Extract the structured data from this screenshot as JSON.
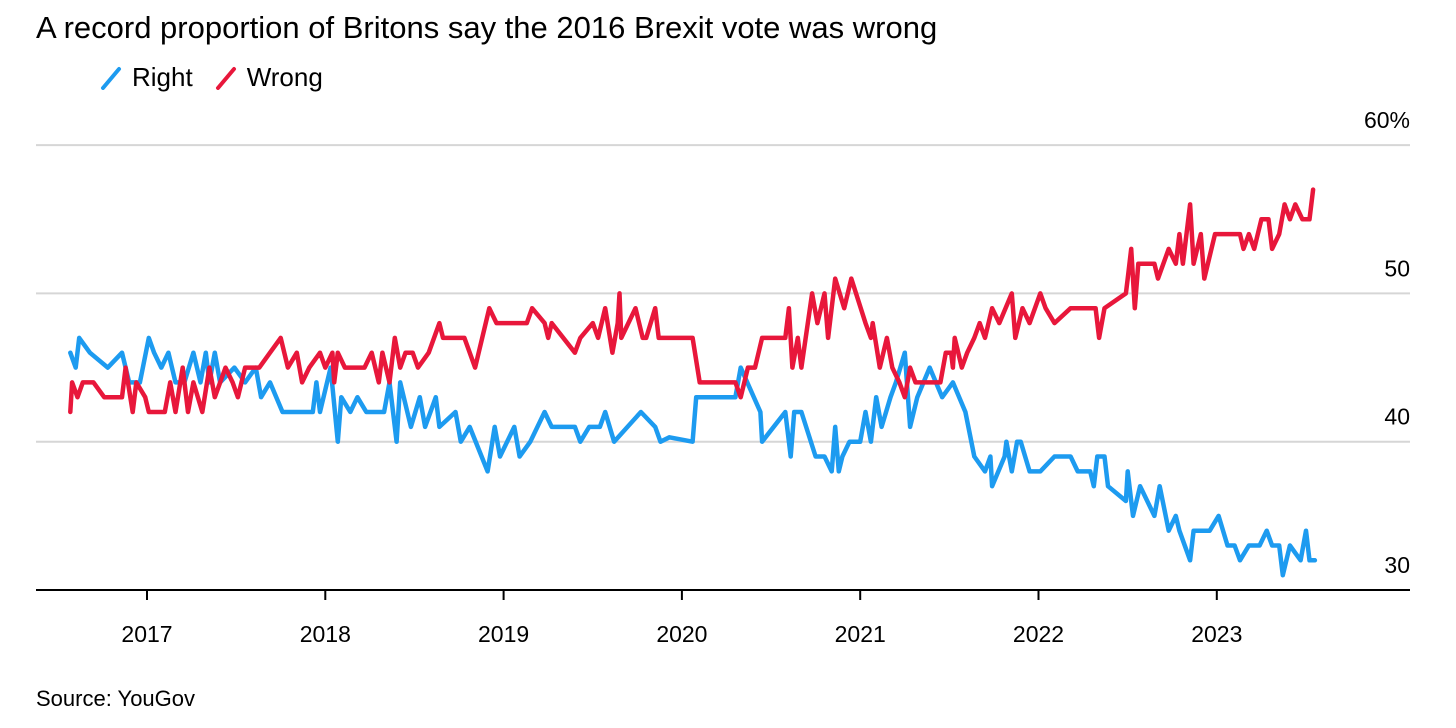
{
  "chart_data": {
    "type": "line",
    "title": "A record proportion of Britons say the 2016 Brexit vote was wrong",
    "source": "Source: YouGov",
    "xlabel": "",
    "ylabel": "",
    "xlim": [
      2016.45,
      2024.1
    ],
    "ylim": [
      30,
      60
    ],
    "y_ticks": [
      {
        "v": 60,
        "label": "60%"
      },
      {
        "v": 50,
        "label": "50"
      },
      {
        "v": 40,
        "label": "40"
      },
      {
        "v": 30,
        "label": "30"
      }
    ],
    "x_ticks": [
      {
        "v": 2017,
        "label": "2017"
      },
      {
        "v": 2018,
        "label": "2018"
      },
      {
        "v": 2019,
        "label": "2019"
      },
      {
        "v": 2020,
        "label": "2020"
      },
      {
        "v": 2021,
        "label": "2021"
      },
      {
        "v": 2022,
        "label": "2022"
      },
      {
        "v": 2023,
        "label": "2023"
      }
    ],
    "grid": true,
    "legend_position": "top-left",
    "series": [
      {
        "name": "Right",
        "color": "#1d9bf0",
        "points": [
          [
            2016.57,
            46
          ],
          [
            2016.6,
            45
          ],
          [
            2016.62,
            47
          ],
          [
            2016.68,
            46
          ],
          [
            2016.78,
            45
          ],
          [
            2016.86,
            46
          ],
          [
            2016.9,
            44
          ],
          [
            2016.96,
            44
          ],
          [
            2017.01,
            47
          ],
          [
            2017.04,
            46
          ],
          [
            2017.08,
            45
          ],
          [
            2017.12,
            46
          ],
          [
            2017.16,
            44
          ],
          [
            2017.21,
            44
          ],
          [
            2017.26,
            46
          ],
          [
            2017.3,
            44
          ],
          [
            2017.33,
            46
          ],
          [
            2017.35,
            44
          ],
          [
            2017.38,
            46
          ],
          [
            2017.41,
            44
          ],
          [
            2017.49,
            45
          ],
          [
            2017.55,
            44
          ],
          [
            2017.61,
            45
          ],
          [
            2017.64,
            43
          ],
          [
            2017.69,
            44
          ],
          [
            2017.76,
            42
          ],
          [
            2017.93,
            42
          ],
          [
            2017.95,
            44
          ],
          [
            2017.97,
            42
          ],
          [
            2018.03,
            45
          ],
          [
            2018.07,
            40
          ],
          [
            2018.09,
            43
          ],
          [
            2018.14,
            42
          ],
          [
            2018.18,
            43
          ],
          [
            2018.23,
            42
          ],
          [
            2018.33,
            42
          ],
          [
            2018.36,
            44
          ],
          [
            2018.4,
            40
          ],
          [
            2018.42,
            44
          ],
          [
            2018.48,
            41
          ],
          [
            2018.53,
            43
          ],
          [
            2018.56,
            41
          ],
          [
            2018.62,
            43
          ],
          [
            2018.64,
            41
          ],
          [
            2018.73,
            42
          ],
          [
            2018.76,
            40
          ],
          [
            2018.81,
            41
          ],
          [
            2018.91,
            38
          ],
          [
            2018.95,
            41
          ],
          [
            2018.98,
            39
          ],
          [
            2019.06,
            41
          ],
          [
            2019.09,
            39
          ],
          [
            2019.15,
            40
          ],
          [
            2019.23,
            42
          ],
          [
            2019.27,
            41
          ],
          [
            2019.4,
            41
          ],
          [
            2019.43,
            40
          ],
          [
            2019.48,
            41
          ],
          [
            2019.54,
            41
          ],
          [
            2019.57,
            42
          ],
          [
            2019.62,
            40
          ],
          [
            2019.77,
            42
          ],
          [
            2019.85,
            41
          ],
          [
            2019.88,
            40
          ],
          [
            2019.93,
            40.3
          ],
          [
            2020.06,
            40
          ],
          [
            2020.08,
            43
          ],
          [
            2020.3,
            43
          ],
          [
            2020.33,
            45
          ],
          [
            2020.44,
            42
          ],
          [
            2020.45,
            40
          ],
          [
            2020.58,
            42
          ],
          [
            2020.61,
            39
          ],
          [
            2020.63,
            42
          ],
          [
            2020.67,
            42
          ],
          [
            2020.75,
            39
          ],
          [
            2020.8,
            39
          ],
          [
            2020.84,
            38
          ],
          [
            2020.86,
            41
          ],
          [
            2020.88,
            38
          ],
          [
            2020.9,
            39
          ],
          [
            2020.94,
            40
          ],
          [
            2021.0,
            40
          ],
          [
            2021.03,
            42
          ],
          [
            2021.06,
            40
          ],
          [
            2021.09,
            43
          ],
          [
            2021.12,
            41
          ],
          [
            2021.17,
            43
          ],
          [
            2021.2,
            44
          ],
          [
            2021.25,
            46
          ],
          [
            2021.28,
            41
          ],
          [
            2021.32,
            43
          ],
          [
            2021.39,
            45
          ],
          [
            2021.46,
            43
          ],
          [
            2021.52,
            44
          ],
          [
            2021.59,
            42
          ],
          [
            2021.64,
            39
          ],
          [
            2021.7,
            38
          ],
          [
            2021.73,
            39
          ],
          [
            2021.74,
            37
          ],
          [
            2021.81,
            39
          ],
          [
            2021.82,
            40
          ],
          [
            2021.85,
            38
          ],
          [
            2021.88,
            40
          ],
          [
            2021.9,
            40
          ],
          [
            2021.95,
            38
          ],
          [
            2022.01,
            38
          ],
          [
            2022.09,
            39
          ],
          [
            2022.18,
            39
          ],
          [
            2022.22,
            38
          ],
          [
            2022.29,
            38
          ],
          [
            2022.31,
            37
          ],
          [
            2022.33,
            39
          ],
          [
            2022.37,
            39
          ],
          [
            2022.39,
            37
          ],
          [
            2022.49,
            36
          ],
          [
            2022.5,
            38
          ],
          [
            2022.53,
            35
          ],
          [
            2022.57,
            37
          ],
          [
            2022.65,
            35
          ],
          [
            2022.68,
            37
          ],
          [
            2022.73,
            34
          ],
          [
            2022.77,
            35
          ],
          [
            2022.79,
            34
          ],
          [
            2022.85,
            32
          ],
          [
            2022.87,
            34
          ],
          [
            2022.96,
            34
          ],
          [
            2023.01,
            35
          ],
          [
            2023.06,
            33
          ],
          [
            2023.1,
            33
          ],
          [
            2023.13,
            32
          ],
          [
            2023.18,
            33
          ],
          [
            2023.24,
            33
          ],
          [
            2023.28,
            34
          ],
          [
            2023.31,
            33
          ],
          [
            2023.35,
            33
          ],
          [
            2023.37,
            31
          ],
          [
            2023.41,
            33
          ],
          [
            2023.47,
            32
          ],
          [
            2023.5,
            34
          ],
          [
            2023.52,
            32
          ],
          [
            2023.55,
            32
          ]
        ]
      },
      {
        "name": "Wrong",
        "color": "#e8173b",
        "points": [
          [
            2016.57,
            42
          ],
          [
            2016.58,
            44
          ],
          [
            2016.61,
            43
          ],
          [
            2016.64,
            44
          ],
          [
            2016.7,
            44
          ],
          [
            2016.76,
            43
          ],
          [
            2016.86,
            43
          ],
          [
            2016.88,
            45
          ],
          [
            2016.92,
            42
          ],
          [
            2016.94,
            44
          ],
          [
            2016.99,
            43
          ],
          [
            2017.01,
            42
          ],
          [
            2017.1,
            42
          ],
          [
            2017.13,
            44
          ],
          [
            2017.16,
            42
          ],
          [
            2017.2,
            45
          ],
          [
            2017.23,
            42
          ],
          [
            2017.26,
            44
          ],
          [
            2017.31,
            42
          ],
          [
            2017.35,
            45
          ],
          [
            2017.38,
            43
          ],
          [
            2017.44,
            45
          ],
          [
            2017.48,
            44
          ],
          [
            2017.51,
            43
          ],
          [
            2017.55,
            45
          ],
          [
            2017.63,
            45
          ],
          [
            2017.69,
            46
          ],
          [
            2017.75,
            47
          ],
          [
            2017.79,
            45
          ],
          [
            2017.84,
            46
          ],
          [
            2017.87,
            44
          ],
          [
            2017.91,
            45
          ],
          [
            2017.97,
            46
          ],
          [
            2018.0,
            45
          ],
          [
            2018.04,
            46
          ],
          [
            2018.05,
            44
          ],
          [
            2018.07,
            46
          ],
          [
            2018.11,
            45
          ],
          [
            2018.22,
            45
          ],
          [
            2018.26,
            46
          ],
          [
            2018.3,
            44
          ],
          [
            2018.32,
            46
          ],
          [
            2018.36,
            44
          ],
          [
            2018.39,
            47
          ],
          [
            2018.42,
            45
          ],
          [
            2018.45,
            46
          ],
          [
            2018.49,
            46
          ],
          [
            2018.52,
            45
          ],
          [
            2018.58,
            46
          ],
          [
            2018.64,
            48
          ],
          [
            2018.66,
            47
          ],
          [
            2018.78,
            47
          ],
          [
            2018.84,
            45
          ],
          [
            2018.92,
            49
          ],
          [
            2018.96,
            48
          ],
          [
            2019.13,
            48
          ],
          [
            2019.16,
            49
          ],
          [
            2019.23,
            48
          ],
          [
            2019.25,
            47
          ],
          [
            2019.27,
            48
          ],
          [
            2019.4,
            46
          ],
          [
            2019.43,
            47
          ],
          [
            2019.5,
            48
          ],
          [
            2019.53,
            47
          ],
          [
            2019.57,
            49
          ],
          [
            2019.61,
            46
          ],
          [
            2019.64,
            48
          ],
          [
            2019.65,
            50
          ],
          [
            2019.66,
            47
          ],
          [
            2019.74,
            49
          ],
          [
            2019.78,
            47
          ],
          [
            2019.8,
            47
          ],
          [
            2019.85,
            49
          ],
          [
            2019.87,
            47
          ],
          [
            2020.06,
            47
          ],
          [
            2020.1,
            44
          ],
          [
            2020.3,
            44
          ],
          [
            2020.33,
            43
          ],
          [
            2020.37,
            45
          ],
          [
            2020.41,
            45
          ],
          [
            2020.45,
            47
          ],
          [
            2020.58,
            47
          ],
          [
            2020.6,
            49
          ],
          [
            2020.62,
            45
          ],
          [
            2020.65,
            47
          ],
          [
            2020.67,
            45
          ],
          [
            2020.73,
            50
          ],
          [
            2020.76,
            48
          ],
          [
            2020.8,
            50
          ],
          [
            2020.82,
            47
          ],
          [
            2020.86,
            51
          ],
          [
            2020.91,
            49
          ],
          [
            2020.95,
            51
          ],
          [
            2021.03,
            48
          ],
          [
            2021.06,
            47
          ],
          [
            2021.07,
            48
          ],
          [
            2021.11,
            45
          ],
          [
            2021.15,
            47
          ],
          [
            2021.18,
            45
          ],
          [
            2021.22,
            44
          ],
          [
            2021.25,
            43
          ],
          [
            2021.28,
            45
          ],
          [
            2021.31,
            44
          ],
          [
            2021.45,
            44
          ],
          [
            2021.48,
            46
          ],
          [
            2021.51,
            46
          ],
          [
            2021.52,
            45
          ],
          [
            2021.53,
            47
          ],
          [
            2021.57,
            45
          ],
          [
            2021.6,
            46
          ],
          [
            2021.64,
            47
          ],
          [
            2021.67,
            48
          ],
          [
            2021.7,
            47
          ],
          [
            2021.74,
            49
          ],
          [
            2021.78,
            48
          ],
          [
            2021.85,
            50
          ],
          [
            2021.87,
            47
          ],
          [
            2021.91,
            49
          ],
          [
            2021.95,
            48
          ],
          [
            2022.01,
            50
          ],
          [
            2022.04,
            49
          ],
          [
            2022.09,
            48
          ],
          [
            2022.18,
            49
          ],
          [
            2022.32,
            49
          ],
          [
            2022.34,
            47
          ],
          [
            2022.37,
            49
          ],
          [
            2022.49,
            50
          ],
          [
            2022.5,
            51
          ],
          [
            2022.52,
            53
          ],
          [
            2022.54,
            49
          ],
          [
            2022.56,
            52
          ],
          [
            2022.65,
            52
          ],
          [
            2022.67,
            51
          ],
          [
            2022.73,
            53
          ],
          [
            2022.77,
            52
          ],
          [
            2022.79,
            54
          ],
          [
            2022.81,
            52
          ],
          [
            2022.85,
            56
          ],
          [
            2022.87,
            52
          ],
          [
            2022.91,
            54
          ],
          [
            2022.93,
            51
          ],
          [
            2022.99,
            54
          ],
          [
            2023.13,
            54
          ],
          [
            2023.15,
            53
          ],
          [
            2023.18,
            54
          ],
          [
            2023.21,
            53
          ],
          [
            2023.25,
            55
          ],
          [
            2023.29,
            55
          ],
          [
            2023.31,
            53
          ],
          [
            2023.35,
            54
          ],
          [
            2023.38,
            56
          ],
          [
            2023.41,
            55
          ],
          [
            2023.44,
            56
          ],
          [
            2023.48,
            55
          ],
          [
            2023.52,
            55
          ],
          [
            2023.54,
            57
          ]
        ]
      }
    ]
  }
}
